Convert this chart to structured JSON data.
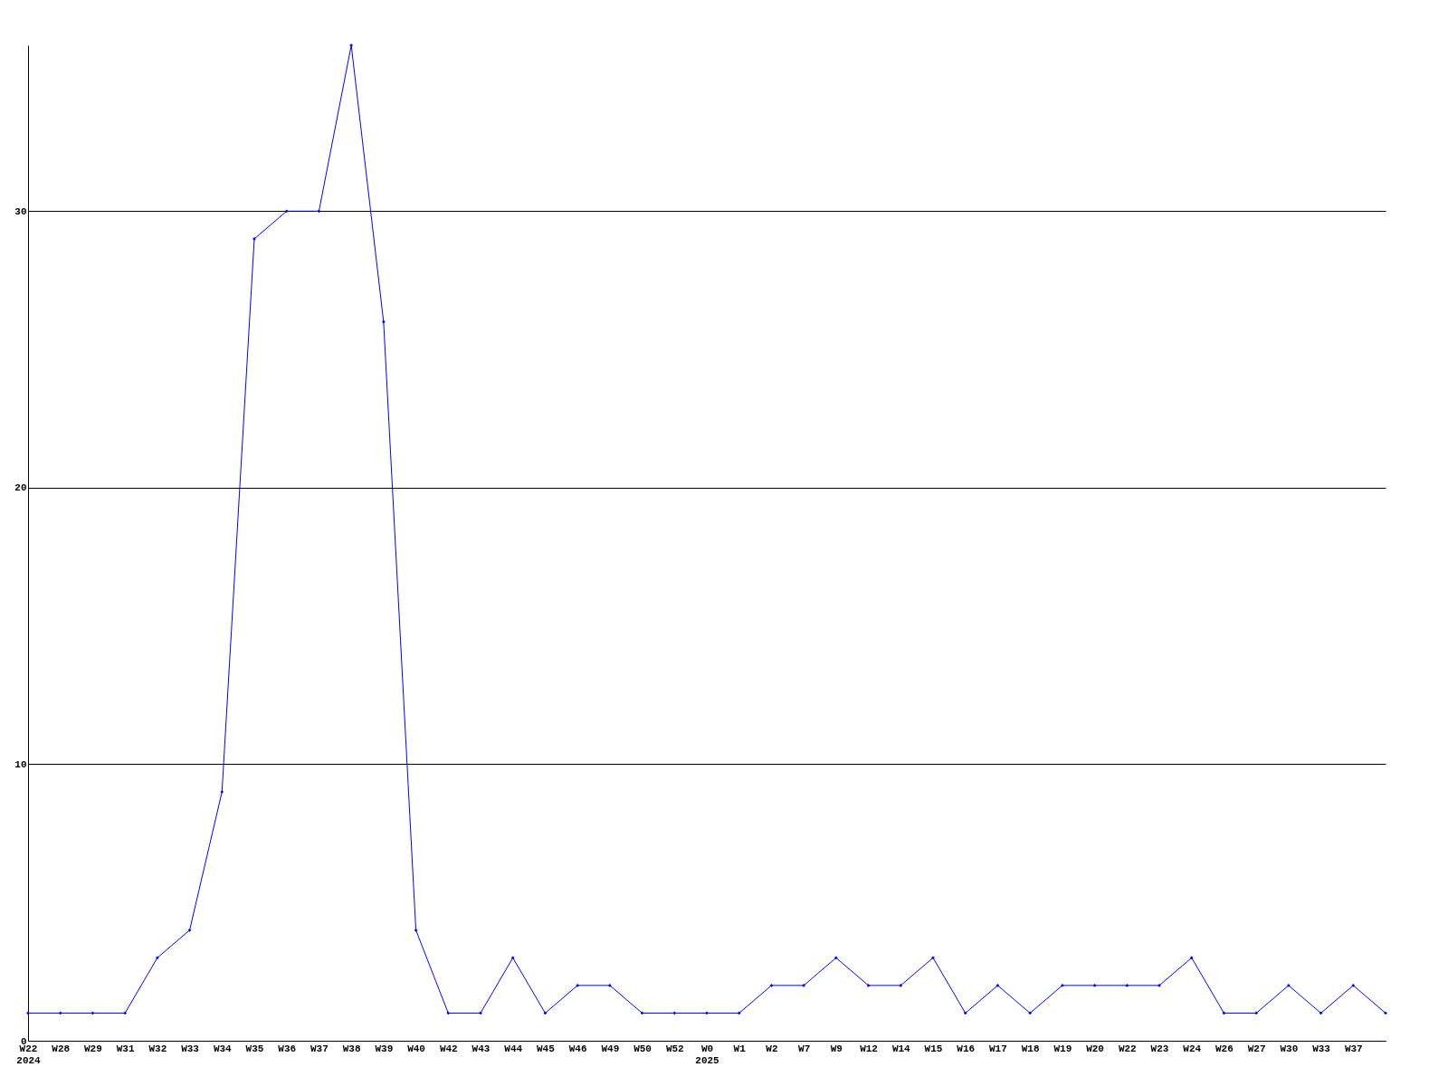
{
  "chart_data": {
    "type": "line",
    "categories": [
      "W22\n2024",
      "W28",
      "W29",
      "W31",
      "W32",
      "W33",
      "W34",
      "W35",
      "W36",
      "W37",
      "W38",
      "W39",
      "W40",
      "W42",
      "W43",
      "W44",
      "W45",
      "W46",
      "W49",
      "W50",
      "W52",
      "W0\n2025",
      "W1",
      "W2",
      "W7",
      "W9",
      "W12",
      "W14",
      "W15",
      "W16",
      "W17",
      "W18",
      "W19",
      "W20",
      "W22",
      "W23",
      "W24",
      "W26",
      "W27",
      "W30",
      "W33",
      "W37",
      null
    ],
    "series": [
      {
        "color": "#0000ff",
        "values": [
          1,
          1,
          1,
          1,
          3,
          4,
          9,
          29,
          30,
          30,
          36,
          26,
          4,
          1,
          1,
          3,
          1,
          2,
          2,
          1,
          1,
          1,
          1,
          2,
          2,
          3,
          2,
          2,
          3,
          1,
          2,
          1,
          2,
          2,
          2,
          2,
          3,
          1,
          1,
          2,
          1,
          2,
          1
        ]
      }
    ],
    "ylim": [
      0,
      36
    ],
    "yticks": [
      0,
      10,
      20,
      30
    ],
    "grid": "y",
    "marker": "diamond",
    "line_style": "solid",
    "legend": false
  }
}
